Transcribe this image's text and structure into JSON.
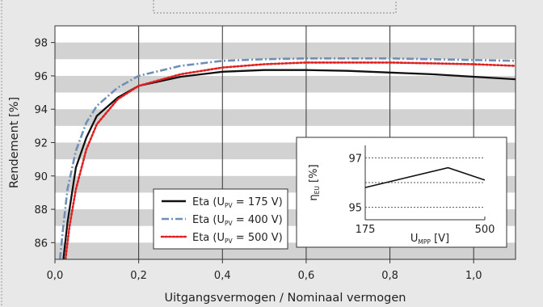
{
  "chart_data": [
    {
      "type": "line",
      "title": "",
      "xlabel": "Uitgangsvermogen / Nominaal vermogen",
      "ylabel": "Rendement [%]",
      "xlim": [
        0.0,
        1.1
      ],
      "ylim": [
        85.0,
        99.0
      ],
      "x_ticks": [
        "0,0",
        "0,2",
        "0,4",
        "0,6",
        "0,8",
        "1,0"
      ],
      "y_ticks": [
        "86",
        "88",
        "90",
        "92",
        "94",
        "96",
        "98"
      ],
      "background": "alternating horizontal gray bands",
      "grid": "vertical lines",
      "legend_position": "bottom-center",
      "legend": [
        {
          "prefix": "Eta (U",
          "sub": "PV",
          "suffix": " = 175 V)"
        },
        {
          "prefix": "Eta (U",
          "sub": "PV",
          "suffix": " = 400 V)"
        },
        {
          "prefix": "Eta (U",
          "sub": "PV",
          "suffix": " = 500 V)"
        }
      ],
      "series": [
        {
          "color": "#111111",
          "style": "solid",
          "x": [
            0.02,
            0.03,
            0.05,
            0.075,
            0.1,
            0.15,
            0.2,
            0.3,
            0.4,
            0.5,
            0.6,
            0.7,
            0.8,
            0.9,
            1.0,
            1.1
          ],
          "y": [
            85.0,
            87.2,
            90.5,
            92.3,
            93.6,
            94.7,
            95.4,
            95.95,
            96.25,
            96.35,
            96.35,
            96.3,
            96.2,
            96.1,
            95.95,
            95.8
          ]
        },
        {
          "color": "#6e8fb8",
          "style": "dash-dot",
          "x": [
            0.012,
            0.02,
            0.03,
            0.05,
            0.075,
            0.1,
            0.15,
            0.2,
            0.3,
            0.4,
            0.5,
            0.6,
            0.7,
            0.8,
            0.9,
            1.0,
            1.1
          ],
          "y": [
            85.0,
            87.0,
            89.2,
            91.5,
            93.2,
            94.2,
            95.3,
            96.0,
            96.6,
            96.9,
            97.0,
            97.05,
            97.05,
            97.05,
            97.0,
            96.95,
            96.9
          ]
        },
        {
          "color": "#e02020",
          "style": "dotted",
          "x": [
            0.025,
            0.035,
            0.05,
            0.075,
            0.1,
            0.15,
            0.2,
            0.3,
            0.4,
            0.5,
            0.6,
            0.7,
            0.8,
            0.9,
            1.0,
            1.1
          ],
          "y": [
            85.0,
            87.0,
            89.2,
            91.6,
            93.1,
            94.6,
            95.4,
            96.1,
            96.5,
            96.7,
            96.8,
            96.8,
            96.8,
            96.75,
            96.7,
            96.6
          ]
        }
      ]
    },
    {
      "type": "line",
      "title": "",
      "ylabel_base": "η",
      "ylabel_sub": "EU",
      "ylabel_unit": " [%]",
      "xlabel_base": "U",
      "xlabel_sub": "MPP",
      "xlabel_unit": " [V]",
      "xlim": [
        175,
        500
      ],
      "ylim": [
        94.5,
        97.5
      ],
      "x_ticks": [
        "175",
        "500"
      ],
      "y_ticks": [
        "97",
        "95"
      ],
      "grid": "horizontal dashed lines at 95, 96, 97",
      "series": [
        {
          "color": "#111111",
          "style": "solid",
          "x": [
            175,
            400,
            500
          ],
          "y": [
            95.8,
            96.6,
            96.1
          ]
        }
      ]
    }
  ]
}
